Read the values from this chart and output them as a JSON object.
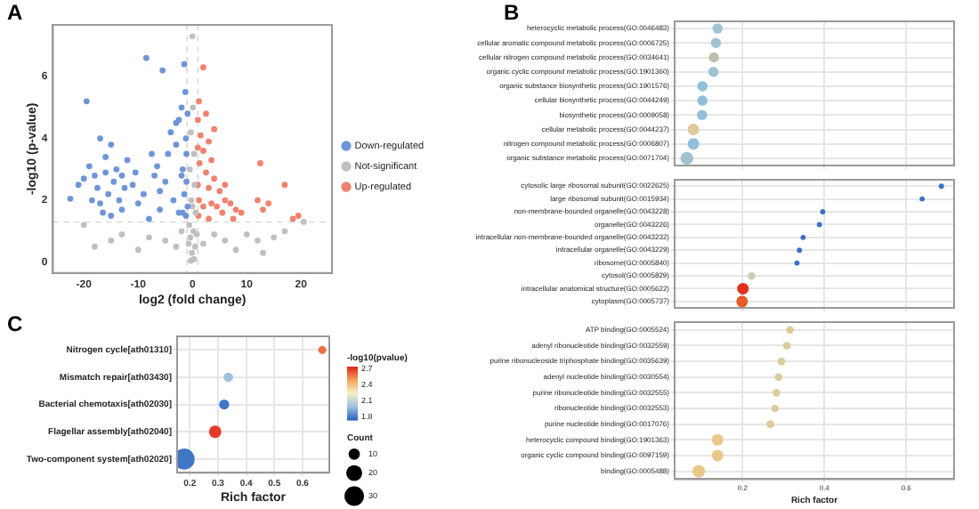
{
  "chart_data": [
    {
      "type": "scatter",
      "title": "A",
      "xlabel": "log2 (fold change)",
      "ylabel": "-log10 (p-value)",
      "xlim": [
        -25.7,
        25.7
      ],
      "xticks": [
        -20,
        -10,
        0,
        10,
        20
      ],
      "ylim": [
        -0.35,
        7.67
      ],
      "yticks": [
        0,
        2,
        4,
        6
      ],
      "grid": false,
      "legend": "right",
      "marker": "circle",
      "ref_lines": [
        {
          "axis": "y",
          "value": 1.3,
          "color": "#d9d9d9",
          "line_style": "dashed"
        },
        {
          "axis": "x",
          "value": -1,
          "color": "#d9d9d9",
          "line_style": "dashed"
        },
        {
          "axis": "x",
          "value": 1,
          "color": "#d9d9d9",
          "line_style": "dashed"
        }
      ],
      "series": [
        {
          "name": "Down-regulated",
          "color": "#6f95d8",
          "x": [
            -19.5,
            -17,
            -15,
            -22.5,
            -20,
            -19,
            -18,
            -17.5,
            -17,
            -16.5,
            -16,
            -15.5,
            -15,
            -14.5,
            -14,
            -13.5,
            -13,
            -12.5,
            -12,
            -11,
            -10,
            -9,
            -8.5,
            -8,
            -7.5,
            -7,
            -6.5,
            -6,
            -5.5,
            -5,
            -4.5,
            -4,
            -3.5,
            -3,
            -2.5,
            -2,
            -1.8,
            -1.5,
            -1.5,
            -1.3,
            -1.2,
            -1.2,
            -1.1,
            -1.1,
            -0.9,
            -0.9,
            -21,
            -18.5,
            -16,
            -13,
            -10.5,
            -6,
            -3,
            -2.5,
            -2,
            -1.8
          ],
          "values": [
            5.2,
            4.0,
            3.8,
            2.05,
            2.7,
            3.1,
            2.8,
            2.4,
            1.9,
            1.6,
            2.9,
            2.2,
            1.5,
            2.6,
            3.0,
            2.0,
            1.7,
            2.4,
            3.3,
            2.5,
            1.9,
            2.2,
            6.6,
            1.4,
            3.5,
            2.8,
            3.1,
            1.7,
            6.2,
            2.6,
            3.5,
            4.2,
            2.0,
            4.5,
            1.6,
            5.0,
            3.0,
            6.4,
            2.2,
            5.5,
            1.5,
            4.0,
            3.5,
            2.6,
            4.8,
            1.8,
            2.5,
            2.0,
            3.4,
            2.8,
            2.9,
            2.3,
            3.8,
            4.6,
            2.8,
            1.6
          ]
        },
        {
          "name": "Not-significant",
          "color": "#c0c0c0",
          "x": [
            0,
            0.1,
            -0.3,
            0.3,
            -0.5,
            0.4,
            -0.2,
            0.6,
            -0.6,
            0.2,
            -0.4,
            0.5,
            -0.1,
            0.3,
            -0.7,
            0.8,
            -0.3,
            0,
            -15,
            -13,
            -10,
            -8,
            -5,
            -3,
            -2,
            2,
            4,
            6,
            8,
            10,
            12,
            13,
            15,
            17,
            20.5,
            -20,
            -18
          ],
          "values": [
            7.3,
            5.0,
            4.2,
            3.5,
            3.0,
            2.5,
            2.0,
            1.6,
            1.2,
            1.0,
            0.8,
            0.5,
            0.3,
            0.1,
            0.6,
            0.9,
            0.05,
            1.8,
            0.7,
            0.9,
            0.4,
            0.8,
            0.7,
            0.5,
            1.0,
            0.6,
            0.9,
            0.7,
            0.4,
            0.9,
            0.7,
            0.3,
            0.8,
            1.0,
            1.3,
            1.2,
            0.5
          ]
        },
        {
          "name": "Up-regulated",
          "color": "#f0826e",
          "x": [
            2,
            1.2,
            1,
            1.5,
            1,
            2,
            3,
            3.5,
            1.3,
            2.5,
            4,
            1,
            3,
            5,
            6,
            1.2,
            2,
            3.5,
            4.5,
            5.5,
            7,
            8,
            9,
            1.1,
            12.5,
            12,
            13,
            14,
            17,
            18.5,
            19.5,
            3,
            6,
            7.5,
            4,
            2.5
          ],
          "values": [
            6.3,
            5.2,
            4.6,
            4.1,
            3.7,
            3.6,
            3.9,
            3.3,
            3.2,
            2.9,
            2.7,
            2.5,
            2.4,
            2.3,
            2.5,
            2.0,
            1.8,
            1.9,
            1.8,
            1.6,
            1.9,
            1.7,
            1.6,
            1.5,
            3.2,
            2.0,
            1.7,
            1.9,
            2.5,
            1.4,
            1.5,
            1.4,
            2.0,
            1.4,
            4.3,
            4.8
          ]
        }
      ]
    },
    {
      "type": "bubble",
      "title": "B",
      "orientation": "horizontal",
      "tick_labels": "y",
      "grid": true,
      "xlim": [
        0.034,
        0.717
      ],
      "xticks": [
        0.2,
        0.4,
        0.6
      ],
      "categories": [
        "heterocyclic metabolic process(GO:0046483)",
        "cellular aromatic compound metabolic process(GO:0006725)",
        "cellular nitrogen compound metabolic process(GO:0034641)",
        "organic cyclic compound metabolic process(GO:1901360)",
        "organic substance biosynthetic process(GO:1901576)",
        "cellular biosynthetic process(GO:0044249)",
        "biosynthetic process(GO:0009058)",
        "cellular metabolic process(GO:0044237)",
        "nitrogen compound metabolic process(GO:0006807)",
        "organic substance metabolic process(GO:0071704)"
      ],
      "values": [
        0.139,
        0.135,
        0.13,
        0.129,
        0.102,
        0.102,
        0.101,
        0.08,
        0.08,
        0.064
      ],
      "sizes": [
        0.64,
        0.64,
        0.64,
        0.64,
        0.64,
        0.64,
        0.64,
        0.81,
        0.81,
        1
      ],
      "colors": [
        "#9fc3d0",
        "#9fc3d0",
        "#b8c4b0",
        "#9fc3d0",
        "#90bfd9",
        "#90bfd9",
        "#90bfd9",
        "#e2c99a",
        "#90bfd9",
        "#9fc3d0"
      ]
    },
    {
      "type": "bubble",
      "orientation": "horizontal",
      "tick_labels": "y",
      "grid": true,
      "xlim": [
        0.034,
        0.717
      ],
      "xticks": [
        0.2,
        0.4,
        0.6
      ],
      "categories": [
        "cytosolic large ribosomal subunit(GO:0022625)",
        "large ribosomal subunit(GO:0015934)",
        "non-membrane-bounded organelle(GO:0043228)",
        "organelle(GO:0043226)",
        "intracellular non-membrane-bounded organelle(GO:0043232)",
        "intracellular organelle(GO:0043229)",
        "ribosome(GO:0005840)",
        "cytosol(GO:0005829)",
        "intracellular anatomical structure(GO:0005622)",
        "cytoplasm(GO:0005737)"
      ],
      "values": [
        0.686,
        0.639,
        0.396,
        0.388,
        0.348,
        0.339,
        0.333,
        0.222,
        0.201,
        0.199
      ],
      "sizes": [
        0.2,
        0.2,
        0.2,
        0.2,
        0.2,
        0.2,
        0.2,
        0.44,
        1,
        1
      ],
      "colors": [
        "#3a6fc4",
        "#3a6fc4",
        "#3a6fc4",
        "#3a6fc4",
        "#3a6fc4",
        "#3a6fc4",
        "#3a6fc4",
        "#d0ccb8",
        "#e03020",
        "#e85a28"
      ]
    },
    {
      "type": "bubble",
      "orientation": "horizontal",
      "grid": true,
      "xlabel": "Rich factor",
      "xlim": [
        0.034,
        0.717
      ],
      "xticks": [
        0.2,
        0.4,
        0.6
      ],
      "categories": [
        "ATP binding(GO:0005524)",
        "adenyl ribonucleotide binding(GO:0032559)",
        "purine ribonucleoside triphosphate binding(GO:0035639)",
        "adenyl nucleotide binding(GO:0030554)",
        "purine ribonucleotide binding(GO:0032555)",
        "ribonucleotide binding(GO:0032553)",
        "purine nucleotide binding(GO:0017076)",
        "heterocyclic compound binding(GO:1901363)",
        "organic cyclic compound binding(GO:0097159)",
        "binding(GO:0005488)"
      ],
      "values": [
        0.316,
        0.308,
        0.295,
        0.288,
        0.283,
        0.279,
        0.268,
        0.139,
        0.139,
        0.093
      ],
      "sizes": [
        0.36,
        0.36,
        0.36,
        0.36,
        0.36,
        0.36,
        0.36,
        0.81,
        0.81,
        1
      ],
      "colors": [
        "#dccb9f",
        "#dccb9f",
        "#dccb9f",
        "#dccb9f",
        "#dccb9f",
        "#dccb9f",
        "#dccb9f",
        "#e8c98a",
        "#e8c98a",
        "#e8c98a"
      ]
    },
    {
      "type": "bubble",
      "title": "C",
      "orientation": "horizontal",
      "grid": true,
      "xlabel": "Rich factor",
      "xlim": [
        0.155,
        0.695
      ],
      "xticks": [
        0.2,
        0.3,
        0.4,
        0.5,
        0.6
      ],
      "categories": [
        "Nitrogen cycle[ath01310]",
        "Mismatch repair[ath03430]",
        "Bacterial chemotaxis[ath02030]",
        "Flagellar assembly[ath02040]",
        "Two-component system[ath02020]"
      ],
      "values": [
        0.67,
        0.337,
        0.322,
        0.29,
        0.18
      ],
      "sizes": [
        5,
        7,
        8,
        12,
        35
      ],
      "size_legend": [
        10,
        20,
        30
      ],
      "legend_title": "Count",
      "cvalues": [
        2.6,
        2.0,
        1.8,
        2.7,
        1.8
      ],
      "clabel": "-log10(pvalue)",
      "clim": [
        1.75,
        2.75
      ],
      "cticks": [
        1.8,
        2.1,
        2.4,
        2.7
      ]
    }
  ]
}
